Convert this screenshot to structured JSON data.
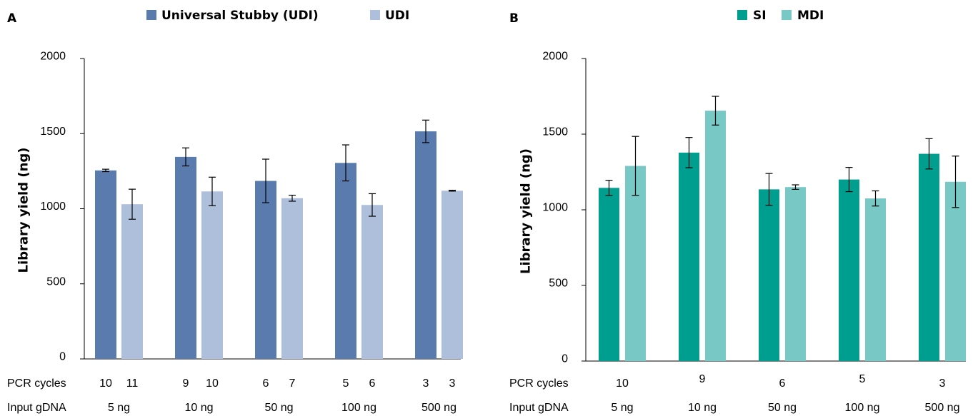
{
  "chart_data": [
    {
      "type": "bar",
      "panel_label": "A",
      "ylabel": "Library yield (ng)",
      "ylim": [
        0,
        2000
      ],
      "yticks": [
        0,
        500,
        1000,
        1500,
        2000
      ],
      "legend_position": "top",
      "categories": [
        "5 ng",
        "10 ng",
        "50 ng",
        "100 ng",
        "500 ng"
      ],
      "row_labels": {
        "pcr": "PCR cycles",
        "input": "Input gDNA"
      },
      "series": [
        {
          "name": "Universal Stubby (UDI)",
          "color": "#5a7bad",
          "values": [
            1255,
            1345,
            1185,
            1305,
            1515
          ],
          "errors": [
            8,
            60,
            145,
            120,
            75
          ],
          "pcr_cycles": [
            "10",
            "9",
            "6",
            "5",
            "3"
          ]
        },
        {
          "name": "UDI",
          "color": "#aebfdc",
          "values": [
            1030,
            1115,
            1070,
            1025,
            1120
          ],
          "errors": [
            100,
            95,
            20,
            75,
            3
          ],
          "pcr_cycles": [
            "11",
            "10",
            "7",
            "6",
            "3"
          ]
        }
      ]
    },
    {
      "type": "bar",
      "panel_label": "B",
      "ylabel": "Library yield (ng)",
      "ylim": [
        0,
        2000
      ],
      "yticks": [
        0,
        500,
        1000,
        1500,
        2000
      ],
      "legend_position": "top",
      "categories": [
        "5 ng",
        "10 ng",
        "50 ng",
        "100 ng",
        "500 ng"
      ],
      "row_labels": {
        "pcr": "PCR cycles",
        "input": "Input gDNA"
      },
      "pcr_cycles": [
        "10",
        "9",
        "6",
        "5",
        "3"
      ],
      "series": [
        {
          "name": "SI",
          "color": "#009e8e",
          "values": [
            1145,
            1378,
            1135,
            1200,
            1370
          ],
          "errors": [
            50,
            100,
            105,
            80,
            100
          ]
        },
        {
          "name": "MDI",
          "color": "#78c8c6",
          "values": [
            1290,
            1655,
            1150,
            1075,
            1185
          ],
          "errors": [
            195,
            95,
            15,
            50,
            170
          ]
        }
      ]
    }
  ]
}
